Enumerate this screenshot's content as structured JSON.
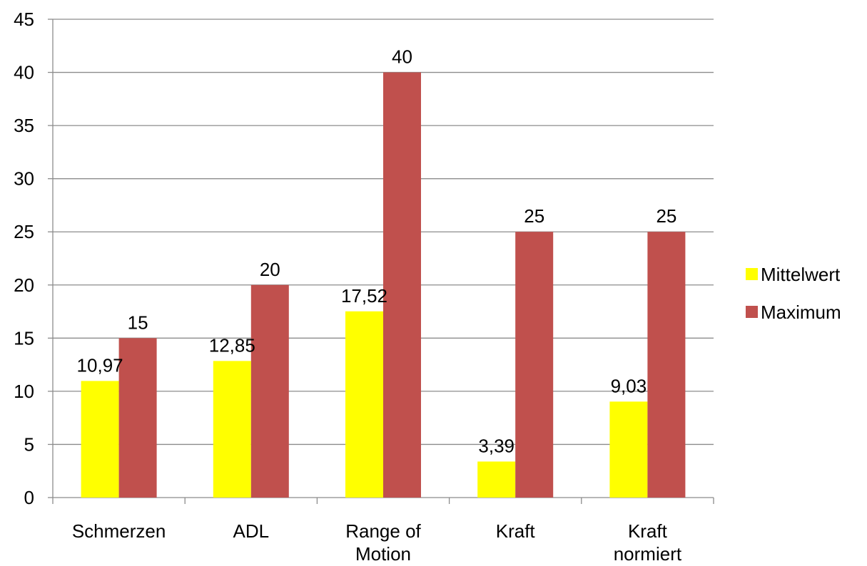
{
  "chart_data": {
    "type": "bar",
    "title": "",
    "xlabel": "",
    "ylabel": "",
    "ylim": [
      0,
      45
    ],
    "yticks": [
      0,
      5,
      10,
      15,
      20,
      25,
      30,
      35,
      40,
      45
    ],
    "grid": true,
    "legend_position": "right",
    "categories": [
      [
        "Schmerzen"
      ],
      [
        "ADL"
      ],
      [
        "Range of",
        "Motion"
      ],
      [
        "Kraft"
      ],
      [
        "Kraft",
        "normiert"
      ]
    ],
    "series": [
      {
        "name": "Mittelwert",
        "color": "#ffff00",
        "values": [
          10.97,
          12.85,
          17.52,
          3.39,
          9.03
        ],
        "labels": [
          "10,97",
          "12,85",
          "17,52",
          "3,39",
          "9,03"
        ]
      },
      {
        "name": "Maximum",
        "color": "#c0504d",
        "values": [
          15,
          20,
          40,
          25,
          25
        ],
        "labels": [
          "15",
          "20",
          "40",
          "25",
          "25"
        ]
      }
    ]
  }
}
